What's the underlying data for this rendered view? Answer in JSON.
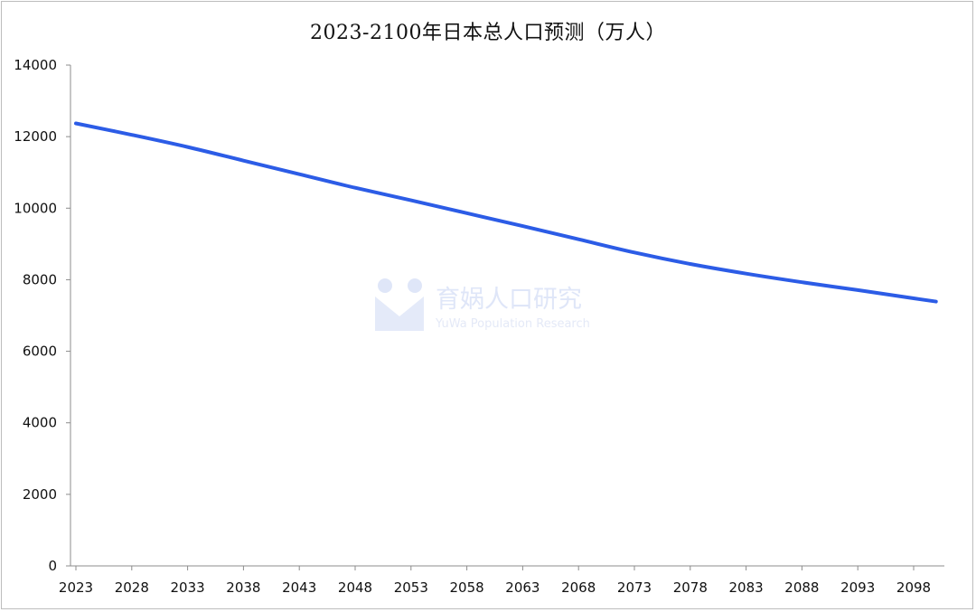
{
  "chart_data": {
    "type": "line",
    "title": "2023-2100年日本总人口预测（万人）",
    "xlabel": "",
    "ylabel": "",
    "ylim": [
      0,
      14000
    ],
    "y_ticks": [
      0,
      2000,
      4000,
      6000,
      8000,
      10000,
      12000,
      14000
    ],
    "x_ticks": [
      2023,
      2028,
      2033,
      2038,
      2043,
      2048,
      2053,
      2058,
      2063,
      2068,
      2073,
      2078,
      2083,
      2088,
      2093,
      2098
    ],
    "xlim": [
      2023,
      2100
    ],
    "grid": false,
    "legend": "none",
    "series": [
      {
        "color": "#2c5ce6",
        "x": [
          2023,
          2028,
          2033,
          2038,
          2043,
          2048,
          2053,
          2058,
          2063,
          2068,
          2073,
          2078,
          2083,
          2088,
          2093,
          2098,
          2100
        ],
        "values": [
          12370,
          12050,
          11710,
          11330,
          10950,
          10570,
          10220,
          9860,
          9500,
          9130,
          8760,
          8440,
          8170,
          7930,
          7710,
          7480,
          7390
        ]
      }
    ]
  },
  "watermark": {
    "name": "育娲人口研究",
    "subtitle": "YuWa Population Research"
  }
}
